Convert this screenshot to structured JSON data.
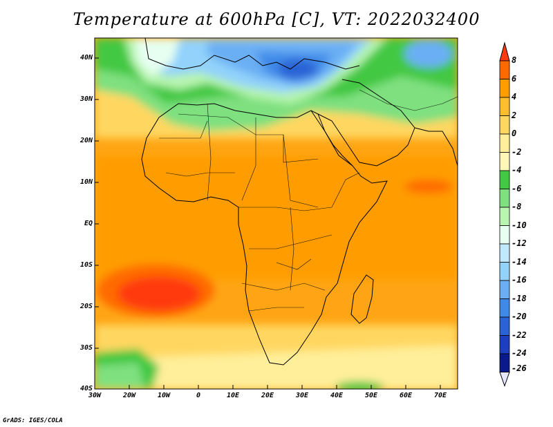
{
  "title": "Temperature at 600hPa [C], VT: 2022032400",
  "credit": "GrADS: IGES/COLA",
  "map": {
    "variable": "Temperature at 600hPa",
    "units": "C",
    "valid_time": "2022032400",
    "lon_range": [
      -30,
      75
    ],
    "lat_range": [
      -40,
      45
    ],
    "x_ticks": [
      "30W",
      "20W",
      "10W",
      "0",
      "10E",
      "20E",
      "30E",
      "40E",
      "50E",
      "60E",
      "70E"
    ],
    "y_ticks": [
      "40N",
      "30N",
      "20N",
      "10N",
      "EQ",
      "10S",
      "20S",
      "30S",
      "40S"
    ]
  },
  "colorbar": {
    "labels": [
      "8",
      "6",
      "4",
      "2",
      "0",
      "-2",
      "-4",
      "-6",
      "-8",
      "-10",
      "-12",
      "-14",
      "-16",
      "-18",
      "-20",
      "-22",
      "-24",
      "-26"
    ],
    "colors": [
      "#ff3a10",
      "#ff6a00",
      "#ff9d00",
      "#ffbd30",
      "#ffd760",
      "#ffef9a",
      "#fff7b8",
      "#43c843",
      "#7fe07f",
      "#b8f5b0",
      "#e6fff0",
      "#c0eafc",
      "#92d2fb",
      "#6aaff4",
      "#3f8ae8",
      "#2a63d6",
      "#1d3fbf",
      "#0a1a8c",
      "#020550"
    ]
  }
}
